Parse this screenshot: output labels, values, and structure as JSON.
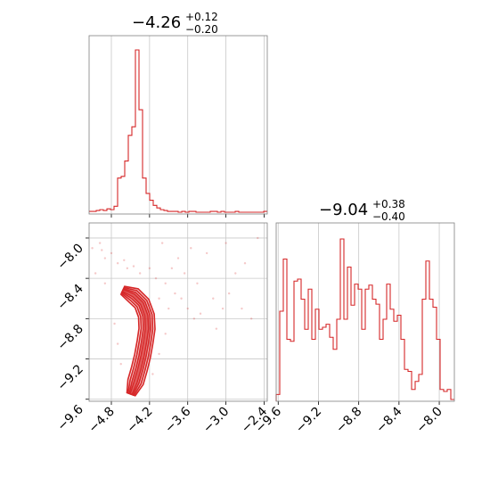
{
  "chart_data": {
    "type": "corner",
    "color": "#d62728",
    "params": [
      {
        "title_main": "−4.26",
        "title_plus": "+0.12",
        "title_minus": "−0.20",
        "median": -4.26,
        "err_plus": 0.12,
        "err_minus": 0.2,
        "range": [
          -5.15,
          -2.35
        ],
        "ticks": [
          -4.8,
          -4.2,
          -3.6,
          -3.0,
          -2.4
        ],
        "tick_labels": [
          "−4.8",
          "−4.2",
          "−3.6",
          "−3.0",
          "−2.4"
        ],
        "hist": {
          "type": "histogram",
          "bin_start": -5.15,
          "bin_width": 0.056,
          "counts": [
            1,
            1,
            2,
            3,
            2,
            4,
            3,
            7,
            40,
            42,
            60,
            90,
            100,
            190,
            120,
            40,
            22,
            14,
            8,
            5,
            3,
            2,
            1,
            1,
            1,
            0,
            1,
            0,
            1,
            1,
            0,
            0,
            0,
            0,
            1,
            1,
            0,
            1,
            0,
            0,
            0,
            1,
            0,
            0,
            0,
            0,
            0,
            0,
            0,
            1
          ]
        }
      },
      {
        "title_main": "−9.04",
        "title_plus": "+0.38",
        "title_minus": "−0.40",
        "median": -9.04,
        "err_plus": 0.38,
        "err_minus": 0.4,
        "range": [
          -9.62,
          -7.85
        ],
        "ticks": [
          -9.6,
          -9.2,
          -8.8,
          -8.4,
          -8.0
        ],
        "tick_labels": [
          "−9.6",
          "−9.2",
          "−8.8",
          "−8.4",
          "−8.0"
        ],
        "hist": {
          "type": "histogram",
          "bin_start": -9.62,
          "bin_width": 0.0354,
          "counts": [
            5,
            88,
            140,
            60,
            58,
            118,
            120,
            100,
            70,
            110,
            60,
            90,
            70,
            72,
            75,
            62,
            50,
            80,
            160,
            80,
            132,
            94,
            115,
            110,
            70,
            110,
            114,
            100,
            95,
            60,
            80,
            115,
            90,
            78,
            84,
            60,
            30,
            28,
            10,
            18,
            25,
            100,
            138,
            100,
            92,
            60,
            10,
            8,
            10,
            0
          ]
        }
      }
    ],
    "scatter_2d": {
      "x_label_param": 0,
      "y_label_param": 1,
      "ridge": [
        {
          "x": -4.62,
          "y": -8.52
        },
        {
          "x": -4.45,
          "y": -8.57
        },
        {
          "x": -4.32,
          "y": -8.65
        },
        {
          "x": -4.25,
          "y": -8.77
        },
        {
          "x": -4.24,
          "y": -8.9
        },
        {
          "x": -4.27,
          "y": -9.03
        },
        {
          "x": -4.31,
          "y": -9.17
        },
        {
          "x": -4.36,
          "y": -9.3
        },
        {
          "x": -4.42,
          "y": -9.43
        },
        {
          "x": -4.49,
          "y": -9.55
        }
      ],
      "outliers": [
        {
          "x": -5.1,
          "y": -8.1
        },
        {
          "x": -4.95,
          "y": -8.12
        },
        {
          "x": -4.9,
          "y": -8.2
        },
        {
          "x": -4.8,
          "y": -8.15
        },
        {
          "x": -4.7,
          "y": -8.25
        },
        {
          "x": -4.6,
          "y": -8.22
        },
        {
          "x": -4.55,
          "y": -8.3
        },
        {
          "x": -4.45,
          "y": -8.28
        },
        {
          "x": -4.35,
          "y": -8.35
        },
        {
          "x": -4.2,
          "y": -8.3
        },
        {
          "x": -4.1,
          "y": -8.4
        },
        {
          "x": -3.95,
          "y": -8.45
        },
        {
          "x": -3.8,
          "y": -8.55
        },
        {
          "x": -3.7,
          "y": -8.6
        },
        {
          "x": -3.9,
          "y": -8.7
        },
        {
          "x": -4.05,
          "y": -8.6
        },
        {
          "x": -3.6,
          "y": -8.7
        },
        {
          "x": -3.5,
          "y": -8.8
        },
        {
          "x": -3.4,
          "y": -8.75
        },
        {
          "x": -3.2,
          "y": -8.6
        },
        {
          "x": -3.05,
          "y": -8.7
        },
        {
          "x": -2.95,
          "y": -8.55
        },
        {
          "x": -2.75,
          "y": -8.7
        },
        {
          "x": -2.6,
          "y": -8.8
        },
        {
          "x": -2.5,
          "y": -8.0
        },
        {
          "x": -3.0,
          "y": -8.05
        },
        {
          "x": -3.3,
          "y": -8.15
        },
        {
          "x": -3.55,
          "y": -8.1
        },
        {
          "x": -3.75,
          "y": -8.2
        },
        {
          "x": -4.0,
          "y": -8.05
        },
        {
          "x": -4.15,
          "y": -9.35
        },
        {
          "x": -4.05,
          "y": -9.15
        },
        {
          "x": -3.95,
          "y": -8.95
        },
        {
          "x": -4.65,
          "y": -9.25
        },
        {
          "x": -4.7,
          "y": -9.05
        },
        {
          "x": -4.75,
          "y": -8.85
        },
        {
          "x": -3.85,
          "y": -8.3
        },
        {
          "x": -2.85,
          "y": -8.35
        },
        {
          "x": -3.15,
          "y": -8.9
        },
        {
          "x": -2.7,
          "y": -8.25
        },
        {
          "x": -4.9,
          "y": -8.45
        },
        {
          "x": -5.05,
          "y": -8.35
        },
        {
          "x": -4.98,
          "y": -8.05
        },
        {
          "x": -3.65,
          "y": -8.35
        },
        {
          "x": -3.45,
          "y": -8.45
        }
      ]
    },
    "grid": true
  }
}
